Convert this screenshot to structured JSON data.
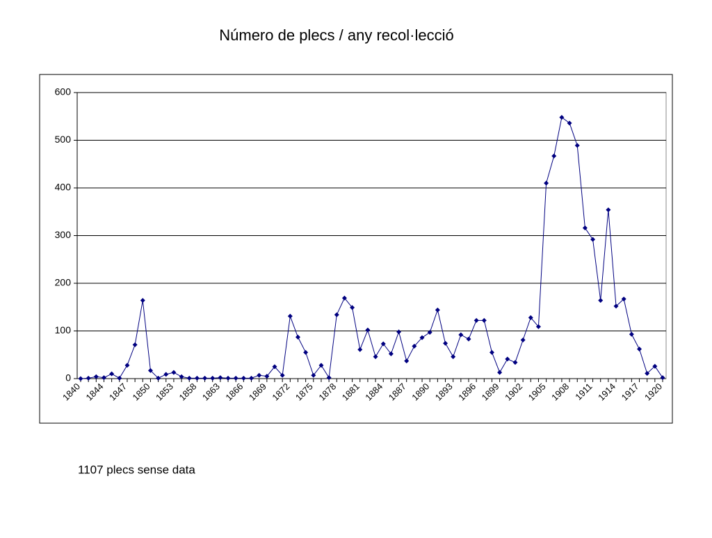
{
  "chart_data": {
    "type": "line",
    "title": "Número de plecs / any recol·lecció",
    "annotation": "1107 plecs sense data",
    "categories": [
      "1840",
      null,
      null,
      "1844",
      null,
      null,
      "1847",
      null,
      null,
      "1850",
      null,
      null,
      "1853",
      null,
      null,
      "1858",
      null,
      null,
      "1863",
      null,
      null,
      "1866",
      null,
      null,
      "1869",
      null,
      null,
      "1872",
      null,
      null,
      "1875",
      null,
      null,
      "1878",
      null,
      null,
      "1881",
      null,
      null,
      "1884",
      null,
      null,
      "1887",
      null,
      null,
      "1890",
      null,
      null,
      "1893",
      null,
      null,
      "1896",
      null,
      null,
      "1899",
      null,
      null,
      "1902",
      null,
      null,
      "1905",
      null,
      null,
      "1908",
      null,
      null,
      "1911",
      null,
      null,
      "1914",
      null,
      null,
      "1917",
      null,
      null,
      "1920"
    ],
    "series": [
      {
        "color": "#000080",
        "values": [
          0,
          1,
          4,
          2,
          10,
          1,
          28,
          71,
          164,
          17,
          1,
          9,
          13,
          4,
          1,
          1,
          1,
          1,
          2,
          1,
          1,
          1,
          1,
          7,
          5,
          25,
          7,
          131,
          87,
          55,
          7,
          28,
          2,
          134,
          169,
          149,
          61,
          102,
          46,
          73,
          52,
          98,
          37,
          68,
          86,
          97,
          144,
          74,
          46,
          92,
          83,
          122,
          122,
          55,
          13,
          41,
          34,
          81,
          128,
          109,
          410,
          467,
          548,
          536,
          489,
          316,
          292,
          164,
          354,
          152,
          167,
          93,
          62,
          11,
          26,
          2
        ]
      }
    ],
    "ylim": [
      0,
      600
    ],
    "yticks": [
      0,
      100,
      200,
      300,
      400,
      500,
      600
    ],
    "grid": true
  }
}
